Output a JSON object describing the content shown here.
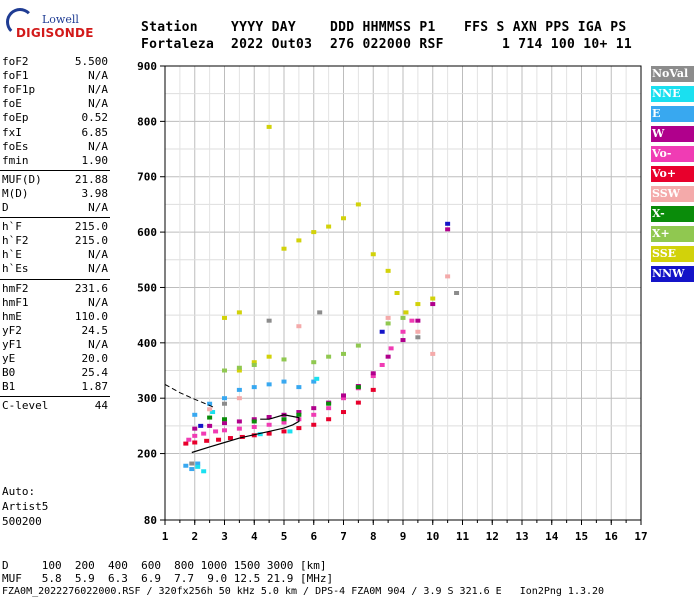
{
  "logo": {
    "top_text": "Lowell",
    "bottom_text": "DIGISONDE"
  },
  "header": {
    "labels": [
      "Station",
      "YYYY DAY",
      "DDD HHMMSS P1",
      "FFS S AXN PPS IGA PS"
    ],
    "values": [
      "Fortaleza",
      "2022 Out03",
      "276 022000 RSF",
      "1 714 100 10+ 11"
    ]
  },
  "params": [
    {
      "label": "foF2",
      "value": "5.500"
    },
    {
      "label": "foF1",
      "value": "N/A"
    },
    {
      "label": "foF1p",
      "value": "N/A"
    },
    {
      "label": "foE",
      "value": "N/A"
    },
    {
      "label": "foEp",
      "value": "0.52"
    },
    {
      "label": "fxI",
      "value": "6.85"
    },
    {
      "label": "foEs",
      "value": "N/A"
    },
    {
      "label": "fmin",
      "value": "1.90"
    },
    {
      "label": "MUF(D)",
      "value": "21.88"
    },
    {
      "label": "M(D)",
      "value": "3.98"
    },
    {
      "label": "D",
      "value": "N/A"
    },
    {
      "label": "h`F",
      "value": "215.0"
    },
    {
      "label": "h`F2",
      "value": "215.0"
    },
    {
      "label": "h`E",
      "value": "N/A"
    },
    {
      "label": "h`Es",
      "value": "N/A"
    },
    {
      "label": "hmF2",
      "value": "231.6"
    },
    {
      "label": "hmF1",
      "value": "N/A"
    },
    {
      "label": "hmE",
      "value": "110.0"
    },
    {
      "label": "yF2",
      "value": "24.5"
    },
    {
      "label": "yF1",
      "value": "N/A"
    },
    {
      "label": "yE",
      "value": "20.0"
    },
    {
      "label": "B0",
      "value": "25.4"
    },
    {
      "label": "B1",
      "value": "1.87"
    },
    {
      "label": "C-level",
      "value": "44"
    }
  ],
  "auto": {
    "line1": "Auto:",
    "line2": "Artist5",
    "line3": "500200"
  },
  "legend": [
    {
      "label": "NoVal",
      "color": "#8c8c8c"
    },
    {
      "label": "NNE",
      "color": "#1ae0f0"
    },
    {
      "label": "E",
      "color": "#38a8f0"
    },
    {
      "label": "W",
      "color": "#b0008c"
    },
    {
      "label": "Vo-",
      "color": "#f03cb4"
    },
    {
      "label": "Vo+",
      "color": "#e8002c"
    },
    {
      "label": "SSW",
      "color": "#f4aaaa"
    },
    {
      "label": "X-",
      "color": "#0a8c0a"
    },
    {
      "label": "X+",
      "color": "#90c850"
    },
    {
      "label": "SSE",
      "color": "#d2d20a"
    },
    {
      "label": "NNW",
      "color": "#1414c8"
    }
  ],
  "footer": {
    "d_row": "D     100  200  400  600  800 1000 1500 3000 [km]",
    "muf_row": "MUF   5.8  5.9  6.3  6.9  7.7  9.0 12.5 21.9 [MHz]",
    "file_row": "FZA0M_2022276022000.RSF / 320fx256h 50 kHz 5.0 km / DPS-4 FZA0M 904 / 3.9 S 321.6 E   Ion2Png 1.3.20"
  },
  "chart_data": {
    "type": "scatter",
    "xlim": [
      1,
      17
    ],
    "ylim": [
      80,
      900
    ],
    "x_ticks": [
      "1",
      "2",
      "3",
      "4",
      "5",
      "6",
      "7",
      "8",
      "9",
      "10",
      "11",
      "12",
      "13",
      "14",
      "15",
      "16",
      "17"
    ],
    "y_ticks": [
      "80",
      "200",
      "300",
      "400",
      "500",
      "600",
      "700",
      "800",
      "900"
    ],
    "grid": true,
    "legend_position": "right",
    "series": [
      {
        "name": "Vo-",
        "points": [
          [
            1.8,
            225
          ],
          [
            2.0,
            232
          ],
          [
            2.3,
            236
          ],
          [
            2.7,
            240
          ],
          [
            3.0,
            242
          ],
          [
            3.5,
            245
          ],
          [
            4.0,
            248
          ],
          [
            4.5,
            252
          ],
          [
            5.0,
            256
          ],
          [
            5.5,
            262
          ],
          [
            6.0,
            270
          ],
          [
            6.5,
            282
          ],
          [
            7.0,
            300
          ],
          [
            7.5,
            318
          ],
          [
            8.0,
            340
          ],
          [
            8.3,
            360
          ],
          [
            8.6,
            390
          ],
          [
            9.0,
            420
          ],
          [
            9.3,
            440
          ]
        ]
      },
      {
        "name": "Vo+",
        "points": [
          [
            1.7,
            218
          ],
          [
            2.0,
            220
          ],
          [
            2.4,
            223
          ],
          [
            2.8,
            225
          ],
          [
            3.2,
            228
          ],
          [
            3.6,
            230
          ],
          [
            4.0,
            233
          ],
          [
            4.5,
            236
          ],
          [
            5.0,
            240
          ],
          [
            5.5,
            246
          ],
          [
            6.0,
            252
          ],
          [
            6.5,
            262
          ],
          [
            7.0,
            275
          ],
          [
            7.5,
            292
          ],
          [
            8.0,
            315
          ]
        ]
      },
      {
        "name": "W",
        "points": [
          [
            2.0,
            245
          ],
          [
            2.5,
            250
          ],
          [
            3.0,
            255
          ],
          [
            3.5,
            258
          ],
          [
            4.0,
            262
          ],
          [
            4.5,
            266
          ],
          [
            5.0,
            270
          ],
          [
            5.5,
            275
          ],
          [
            6.0,
            282
          ],
          [
            6.5,
            292
          ],
          [
            7.0,
            305
          ],
          [
            7.5,
            322
          ],
          [
            8.0,
            345
          ],
          [
            8.5,
            375
          ],
          [
            9.0,
            405
          ],
          [
            9.5,
            440
          ],
          [
            10.0,
            470
          ],
          [
            10.5,
            605
          ]
        ]
      },
      {
        "name": "E",
        "points": [
          [
            2.0,
            270
          ],
          [
            2.5,
            290
          ],
          [
            3.0,
            300
          ],
          [
            3.5,
            315
          ],
          [
            4.0,
            320
          ],
          [
            4.5,
            325
          ],
          [
            5.0,
            330
          ],
          [
            5.5,
            320
          ],
          [
            6.0,
            330
          ],
          [
            1.7,
            178
          ],
          [
            1.9,
            172
          ],
          [
            2.1,
            182
          ]
        ]
      },
      {
        "name": "NNE",
        "points": [
          [
            2.1,
            176
          ],
          [
            2.3,
            168
          ],
          [
            2.6,
            275
          ],
          [
            4.2,
            235
          ],
          [
            5.2,
            240
          ],
          [
            6.1,
            335
          ]
        ]
      },
      {
        "name": "SSE",
        "points": [
          [
            3.5,
            350
          ],
          [
            4.0,
            365
          ],
          [
            4.5,
            375
          ],
          [
            5.0,
            570
          ],
          [
            5.5,
            585
          ],
          [
            6.0,
            600
          ],
          [
            6.5,
            610
          ],
          [
            7.0,
            625
          ],
          [
            7.5,
            650
          ],
          [
            8.0,
            560
          ],
          [
            8.5,
            530
          ],
          [
            8.8,
            490
          ],
          [
            9.1,
            455
          ],
          [
            9.5,
            470
          ],
          [
            10.0,
            480
          ],
          [
            4.5,
            790
          ],
          [
            3.0,
            445
          ],
          [
            3.5,
            455
          ]
        ]
      },
      {
        "name": "X+",
        "points": [
          [
            3.0,
            350
          ],
          [
            3.5,
            355
          ],
          [
            4.0,
            360
          ],
          [
            5.0,
            370
          ],
          [
            6.0,
            365
          ],
          [
            6.5,
            375
          ],
          [
            7.0,
            380
          ],
          [
            7.5,
            395
          ],
          [
            8.5,
            435
          ],
          [
            9.0,
            445
          ]
        ]
      },
      {
        "name": "X-",
        "points": [
          [
            2.5,
            265
          ],
          [
            3.0,
            262
          ],
          [
            4.0,
            258
          ],
          [
            5.0,
            262
          ],
          [
            5.5,
            270
          ],
          [
            6.5,
            290
          ],
          [
            7.5,
            320
          ]
        ]
      },
      {
        "name": "SSW",
        "points": [
          [
            2.5,
            280
          ],
          [
            3.5,
            300
          ],
          [
            5.5,
            430
          ],
          [
            8.5,
            445
          ],
          [
            9.5,
            420
          ],
          [
            10.0,
            380
          ],
          [
            10.5,
            520
          ]
        ]
      },
      {
        "name": "NoVal",
        "points": [
          [
            1.9,
            182
          ],
          [
            3.0,
            290
          ],
          [
            4.5,
            440
          ],
          [
            6.2,
            455
          ],
          [
            9.5,
            410
          ],
          [
            10.8,
            490
          ]
        ]
      },
      {
        "name": "NNW",
        "points": [
          [
            10.5,
            615
          ],
          [
            8.3,
            420
          ],
          [
            2.2,
            250
          ]
        ]
      }
    ],
    "profile": {
      "points": [
        [
          1.9,
          202
        ],
        [
          2.5,
          212
        ],
        [
          3.0,
          220
        ],
        [
          3.5,
          228
        ],
        [
          4.0,
          234
        ],
        [
          4.5,
          240
        ],
        [
          5.0,
          246
        ],
        [
          5.3,
          252
        ],
        [
          5.5,
          258
        ],
        [
          5.5,
          265
        ],
        [
          5.0,
          270
        ],
        [
          4.5,
          262
        ],
        [
          4.2,
          262
        ]
      ]
    },
    "profile_top": {
      "points": [
        [
          1.0,
          325
        ],
        [
          1.5,
          310
        ],
        [
          2.0,
          298
        ],
        [
          2.5,
          287
        ],
        [
          2.7,
          282
        ]
      ]
    }
  }
}
